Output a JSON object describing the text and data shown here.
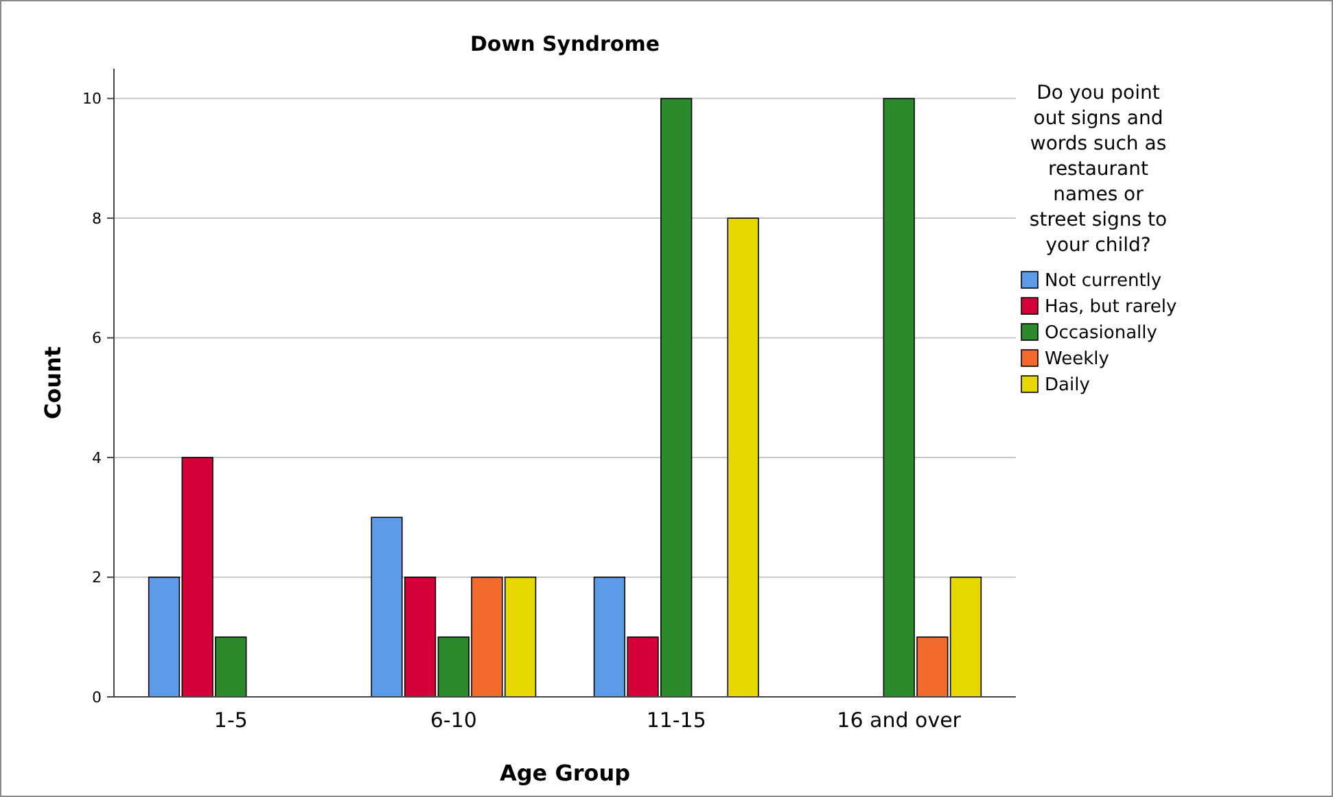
{
  "chart_data": {
    "type": "bar",
    "title": "Down Syndrome",
    "xlabel": "Age Group",
    "ylabel": "Count",
    "legend_title": "Do you point\nout signs and\nwords such as\nrestaurant\nnames or\nstreet signs to\nyour child?",
    "categories": [
      "1-5",
      "6-10",
      "11-15",
      "16 and over"
    ],
    "series": [
      {
        "name": "Not currently",
        "color": "#5b9be8",
        "values": [
          2,
          3,
          2,
          null
        ]
      },
      {
        "name": "Has, but rarely",
        "color": "#d5003a",
        "values": [
          4,
          2,
          1,
          null
        ]
      },
      {
        "name": "Occasionally",
        "color": "#2b8a2b",
        "values": [
          1,
          1,
          10,
          10
        ]
      },
      {
        "name": "Weekly",
        "color": "#f26b2c",
        "values": [
          null,
          2,
          null,
          1
        ]
      },
      {
        "name": "Daily",
        "color": "#e6d800",
        "values": [
          null,
          2,
          8,
          2
        ]
      }
    ],
    "ylim": [
      0,
      10.5
    ],
    "yticks": [
      0,
      2,
      4,
      6,
      8,
      10
    ],
    "grid": "y",
    "legend": "right"
  }
}
